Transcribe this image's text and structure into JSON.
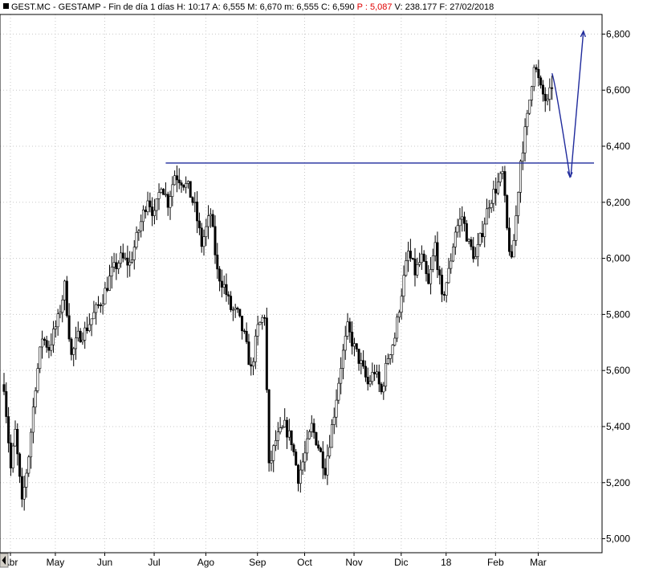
{
  "header": {
    "parts": [
      {
        "text": "GEST.MC - GESTAMP - Fin de día 1 días",
        "color": "#000000"
      },
      {
        "text": "H: 10:17",
        "color": "#000000"
      },
      {
        "text": "A: 6,555",
        "color": "#000000"
      },
      {
        "text": "M: 6,670",
        "color": "#000000"
      },
      {
        "text": "m: 6,555",
        "color": "#000000"
      },
      {
        "text": "C: 6,590",
        "color": "#000000"
      },
      {
        "text": "P : 5,087",
        "color": "#e00000"
      },
      {
        "text": "V: 238.177",
        "color": "#000000"
      },
      {
        "text": "F: 27/02/2018",
        "color": "#000000"
      }
    ]
  },
  "chart_data": {
    "type": "bar",
    "subtype": "ohlc-daily",
    "title": "GEST.MC - GESTAMP - Fin de día 1 días",
    "ylim": [
      4.95,
      6.87
    ],
    "yticks": [
      "5,000",
      "5,200",
      "5,400",
      "5,600",
      "5,800",
      "6,000",
      "6,200",
      "6,400",
      "6,600",
      "6,800"
    ],
    "xticks": [
      "Abr",
      "May",
      "Jun",
      "Jul",
      "Ago",
      "Sep",
      "Oct",
      "Nov",
      "Dic",
      "18",
      "Feb",
      "Mar"
    ],
    "grid": true,
    "price_path": [
      [
        0,
        5.55
      ],
      [
        3,
        5.25
      ],
      [
        5,
        5.38
      ],
      [
        8,
        5.12
      ],
      [
        11,
        5.3
      ],
      [
        14,
        5.55
      ],
      [
        17,
        5.72
      ],
      [
        20,
        5.68
      ],
      [
        24,
        5.78
      ],
      [
        27,
        5.9
      ],
      [
        30,
        5.65
      ],
      [
        33,
        5.72
      ],
      [
        36,
        5.74
      ],
      [
        40,
        5.8
      ],
      [
        44,
        5.86
      ],
      [
        48,
        5.95
      ],
      [
        52,
        6.0
      ],
      [
        56,
        5.98
      ],
      [
        60,
        6.1
      ],
      [
        64,
        6.22
      ],
      [
        67,
        6.15
      ],
      [
        70,
        6.27
      ],
      [
        73,
        6.2
      ],
      [
        76,
        6.3
      ],
      [
        79,
        6.28
      ],
      [
        82,
        6.25
      ],
      [
        85,
        6.18
      ],
      [
        88,
        6.05
      ],
      [
        92,
        6.16
      ],
      [
        95,
        5.95
      ],
      [
        98,
        5.9
      ],
      [
        101,
        5.82
      ],
      [
        104,
        5.8
      ],
      [
        107,
        5.72
      ],
      [
        110,
        5.6
      ],
      [
        113,
        5.75
      ],
      [
        116,
        5.8
      ],
      [
        118,
        5.25
      ],
      [
        121,
        5.35
      ],
      [
        125,
        5.4
      ],
      [
        128,
        5.35
      ],
      [
        131,
        5.22
      ],
      [
        134,
        5.3
      ],
      [
        137,
        5.4
      ],
      [
        140,
        5.33
      ],
      [
        143,
        5.25
      ],
      [
        147,
        5.45
      ],
      [
        150,
        5.62
      ],
      [
        153,
        5.75
      ],
      [
        156,
        5.68
      ],
      [
        159,
        5.62
      ],
      [
        162,
        5.55
      ],
      [
        165,
        5.6
      ],
      [
        168,
        5.52
      ],
      [
        171,
        5.65
      ],
      [
        174,
        5.72
      ],
      [
        177,
        5.88
      ],
      [
        180,
        6.02
      ],
      [
        183,
        5.95
      ],
      [
        186,
        6.0
      ],
      [
        189,
        5.9
      ],
      [
        192,
        6.05
      ],
      [
        195,
        5.85
      ],
      [
        198,
        5.95
      ],
      [
        201,
        6.1
      ],
      [
        204,
        6.15
      ],
      [
        207,
        6.05
      ],
      [
        210,
        6.0
      ],
      [
        213,
        6.1
      ],
      [
        216,
        6.2
      ],
      [
        219,
        6.25
      ],
      [
        222,
        6.3
      ],
      [
        224,
        6.1
      ],
      [
        226,
        5.98
      ],
      [
        228,
        6.15
      ],
      [
        230,
        6.35
      ],
      [
        233,
        6.5
      ],
      [
        236,
        6.7
      ],
      [
        239,
        6.6
      ],
      [
        242,
        6.55
      ],
      [
        244,
        6.62
      ]
    ],
    "annotations": {
      "resistance_level": 6.34,
      "projection_arrow": {
        "start": [
          244,
          6.66
        ],
        "low": [
          252,
          6.29
        ],
        "end": [
          258,
          6.81
        ]
      }
    }
  }
}
